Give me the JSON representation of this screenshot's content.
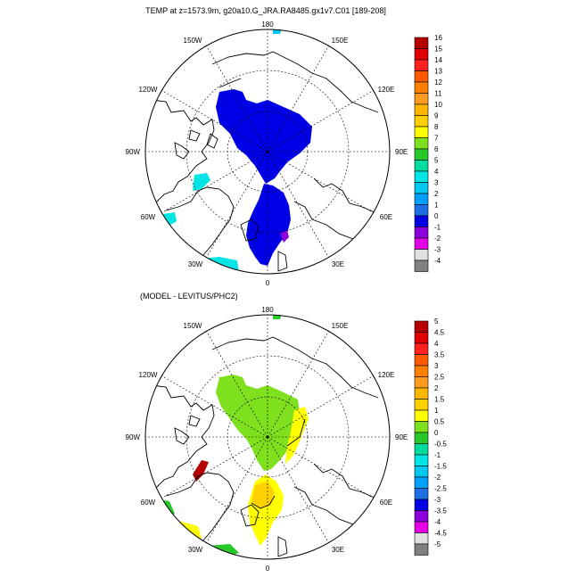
{
  "panel_top": {
    "title": "TEMP at z=1573.9m, g20a10.G_JRA.RA8485.gx1v7.C01 [189-208]",
    "lon_labels": {
      "top": "180",
      "bottom": "0",
      "left": "90W",
      "right": "90E",
      "ul1": "150W",
      "ul2": "120W",
      "ur1": "150E",
      "ur2": "120E",
      "ll1": "60W",
      "ll2": "30W",
      "lr1": "60E",
      "lr2": "30E"
    },
    "colorbar": {
      "labels": [
        "16",
        "15",
        "14",
        "13",
        "12",
        "11",
        "10",
        "9",
        "8",
        "7",
        "6",
        "5",
        "4",
        "3",
        "2",
        "1",
        "0",
        "-1",
        "-2",
        "-3",
        "-4"
      ],
      "colors": [
        "#b40000",
        "#e00000",
        "#ff2020",
        "#ff5a00",
        "#ff8000",
        "#ff9c20",
        "#ffb600",
        "#ffd000",
        "#ffff00",
        "#7fe01e",
        "#28c828",
        "#00dca0",
        "#00e6e6",
        "#00c8f0",
        "#00a0ff",
        "#1e6ee6",
        "#0000e6",
        "#8c00dc",
        "#e600e6",
        "#e0e0e0",
        "#808080"
      ]
    }
  },
  "panel_bottom": {
    "title": "(MODEL - LEVITUS/PHC2)",
    "lon_labels": {
      "top": "180",
      "bottom": "0",
      "left": "90W",
      "right": "90E",
      "ul1": "150W",
      "ul2": "120W",
      "ur1": "150E",
      "ur2": "120E",
      "ll1": "60W",
      "ll2": "30W",
      "lr1": "60E",
      "lr2": "30E"
    },
    "colorbar": {
      "labels": [
        "5",
        "4.5",
        "4",
        "3.5",
        "3",
        "2.5",
        "2",
        "1.5",
        "1",
        "0.5",
        "0",
        "-0.5",
        "-1",
        "-1.5",
        "-2",
        "-2.5",
        "-3",
        "-3.5",
        "-4",
        "-4.5",
        "-5"
      ],
      "colors": [
        "#b40000",
        "#e00000",
        "#ff2020",
        "#ff5a00",
        "#ff8000",
        "#ff9c20",
        "#ffb600",
        "#ffd000",
        "#ffff00",
        "#7fe01e",
        "#28c828",
        "#00dca0",
        "#00e6e6",
        "#00c8f0",
        "#00a0ff",
        "#1e6ee6",
        "#0000e6",
        "#8c00dc",
        "#e600e6",
        "#e0e0e0",
        "#808080"
      ]
    }
  },
  "colors": {
    "top_field": "#0000e6",
    "top_shelf": "#00e6e6",
    "top_spot": "#8c00dc",
    "bottom_main": "#7fe01e",
    "bottom_shelf": "#28c828",
    "bottom_warm": "#ffff00",
    "bottom_warmer": "#ffd000",
    "bottom_hot": "#b40000"
  }
}
